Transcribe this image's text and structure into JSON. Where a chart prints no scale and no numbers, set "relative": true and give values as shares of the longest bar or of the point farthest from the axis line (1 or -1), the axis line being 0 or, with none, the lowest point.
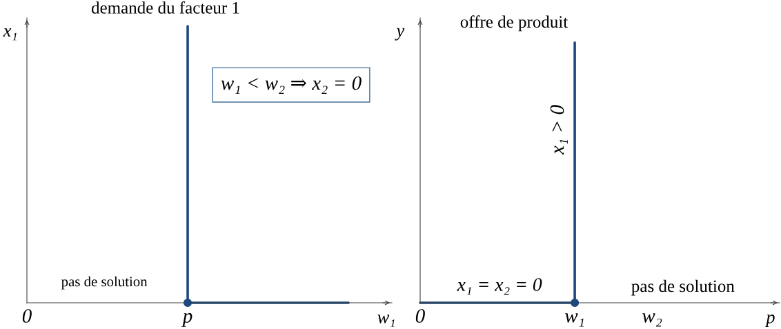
{
  "chart_data": [
    {
      "type": "line",
      "title": "demande du facteur 1",
      "xlabel": "w₁",
      "ylabel": "x₁",
      "relative": true,
      "categories": [
        "0",
        "p",
        null
      ],
      "series": [
        {
          "color": "#1f497d",
          "x": [
            "p",
            "p"
          ],
          "values": [
            1,
            0
          ]
        },
        {
          "color": "#1f497d",
          "values": [
            null,
            0,
            0
          ]
        },
        {
          "type": "scatter",
          "color": "#1f497d",
          "marker": "circle",
          "x": [
            "p"
          ],
          "values": [
            0
          ]
        }
      ],
      "annotations": [
        "w₁ < w₂ ⇒ x₂ = 0",
        "pas de solution"
      ]
    },
    {
      "type": "line",
      "title": "offre de produit",
      "xlabel": "p",
      "ylabel": "y",
      "relative": true,
      "categories": [
        "0",
        null,
        "w₁",
        "w₂"
      ],
      "series": [
        {
          "color": "#1f497d",
          "values": [
            0,
            0,
            0,
            null
          ]
        },
        {
          "color": "#1f497d",
          "x": [
            "w₁",
            "w₁"
          ],
          "values": [
            0,
            1
          ]
        },
        {
          "type": "scatter",
          "color": "#1f497d",
          "marker": "circle",
          "x": [
            "w₁"
          ],
          "values": [
            0
          ]
        }
      ],
      "annotations": [
        "x₁ > 0",
        "x₁ = x₂ = 0",
        "pas de solution"
      ]
    }
  ]
}
